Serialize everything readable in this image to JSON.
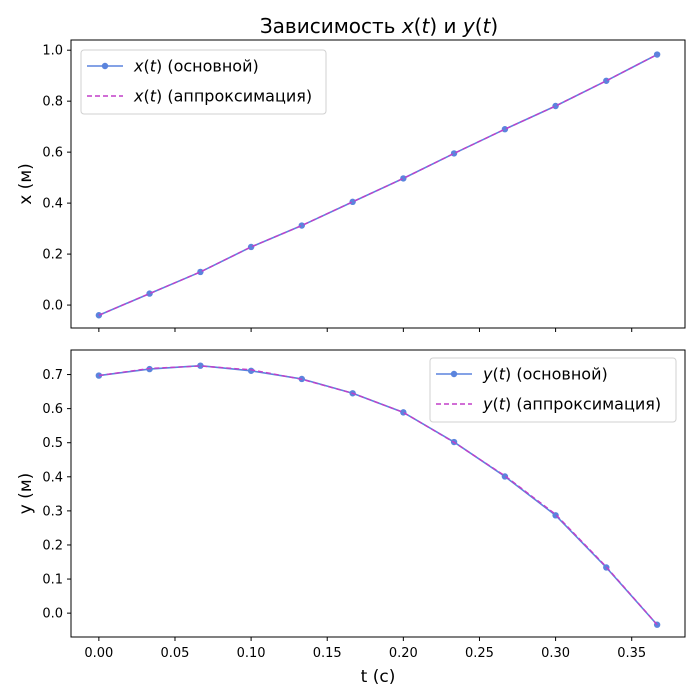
{
  "title": "Зависимость x(t) и y(t)",
  "title_parts": [
    "Зависимость ",
    "x",
    "(",
    "t",
    ") и ",
    "y",
    "(",
    "t",
    ")"
  ],
  "colors": {
    "main": "#5b84dd",
    "approx": "#c23fc9",
    "marker": "#5b84dd"
  },
  "chart_data": [
    {
      "type": "line",
      "id": "x",
      "ylabel": "x (м)",
      "xlabel": "",
      "x": [
        0.0,
        0.0333,
        0.0667,
        0.1,
        0.1333,
        0.1667,
        0.2,
        0.2333,
        0.2667,
        0.3,
        0.3333,
        0.3667
      ],
      "xlim": [
        -0.0183,
        0.385
      ],
      "ylim": [
        -0.09,
        1.04
      ],
      "yticks": [
        0.0,
        0.2,
        0.4,
        0.6,
        0.8,
        1.0
      ],
      "ytick_labels": [
        "0.0",
        "0.2",
        "0.4",
        "0.6",
        "0.8",
        "1.0"
      ],
      "xticks": [
        0.0,
        0.05,
        0.1,
        0.15,
        0.2,
        0.25,
        0.3,
        0.35
      ],
      "xtick_labels": [],
      "legend_position": "top-left",
      "series": [
        {
          "name": "x(t) (основной)",
          "legend_parts": [
            "x",
            "(",
            "t",
            ") (основной)"
          ],
          "style": "solid-markers",
          "values": [
            -0.04,
            0.045,
            0.13,
            0.228,
            0.312,
            0.405,
            0.497,
            0.595,
            0.69,
            0.781,
            0.88,
            0.983
          ]
        },
        {
          "name": "x(t) (аппроксимация)",
          "legend_parts": [
            "x",
            "(",
            "t",
            ") (аппроксимация)"
          ],
          "style": "dashed",
          "values": [
            -0.04,
            0.045,
            0.13,
            0.228,
            0.312,
            0.405,
            0.497,
            0.595,
            0.69,
            0.781,
            0.88,
            0.983
          ]
        }
      ]
    },
    {
      "type": "line",
      "id": "y",
      "ylabel": "y (м)",
      "xlabel": "t (c)",
      "x": [
        0.0,
        0.0333,
        0.0667,
        0.1,
        0.1333,
        0.1667,
        0.2,
        0.2333,
        0.2667,
        0.3,
        0.3333,
        0.3667
      ],
      "xlim": [
        -0.0183,
        0.385
      ],
      "ylim": [
        -0.07,
        0.772
      ],
      "yticks": [
        0.0,
        0.1,
        0.2,
        0.3,
        0.4,
        0.5,
        0.6,
        0.7
      ],
      "ytick_labels": [
        "0.0",
        "0.1",
        "0.2",
        "0.3",
        "0.4",
        "0.5",
        "0.6",
        "0.7"
      ],
      "xticks": [
        0.0,
        0.05,
        0.1,
        0.15,
        0.2,
        0.25,
        0.3,
        0.35
      ],
      "xtick_labels": [
        "0.00",
        "0.05",
        "0.10",
        "0.15",
        "0.20",
        "0.25",
        "0.30",
        "0.35"
      ],
      "legend_position": "top-right",
      "series": [
        {
          "name": "y(t) (основной)",
          "legend_parts": [
            "y",
            "(",
            "t",
            ") (основной)"
          ],
          "style": "solid-markers",
          "values": [
            0.697,
            0.716,
            0.726,
            0.711,
            0.687,
            0.645,
            0.589,
            0.502,
            0.401,
            0.287,
            0.134,
            -0.034
          ]
        },
        {
          "name": "y(t) (аппроксимация)",
          "legend_parts": [
            "y",
            "(",
            "t",
            ") (аппроксимация)"
          ],
          "style": "dashed",
          "values": [
            0.697,
            0.718,
            0.725,
            0.714,
            0.686,
            0.645,
            0.589,
            0.501,
            0.403,
            0.29,
            0.136,
            -0.034
          ]
        }
      ]
    }
  ]
}
